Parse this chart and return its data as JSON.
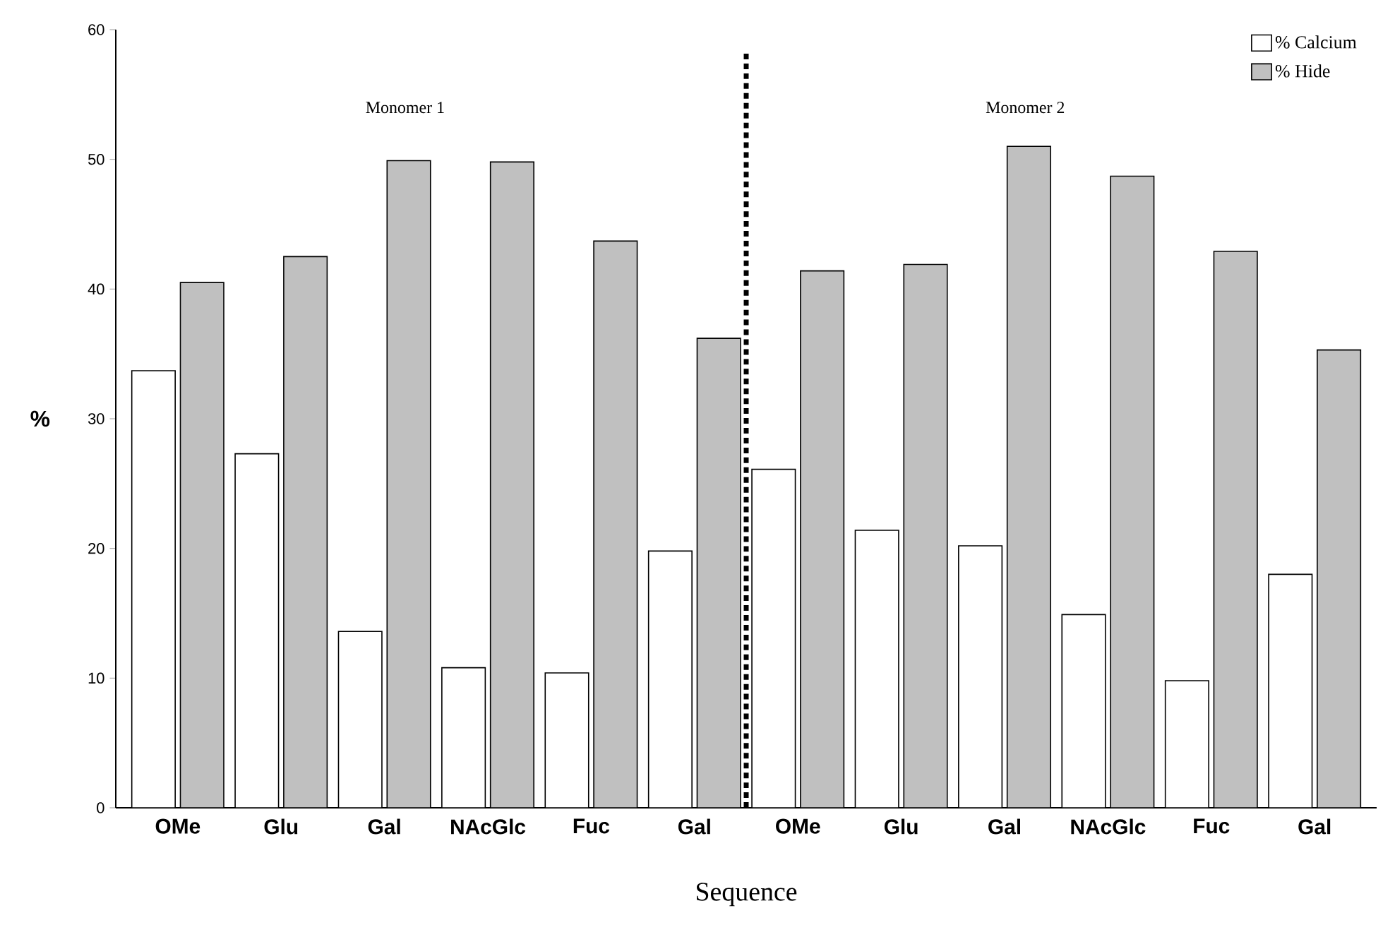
{
  "chart_data": {
    "type": "bar",
    "xlabel": "Sequence",
    "ylabel": "%",
    "categories": [
      "OMe",
      "Glu",
      "Gal",
      "NAcGlc",
      "Fuc",
      "Gal",
      "OMe",
      "Glu",
      "Gal",
      "NAcGlc",
      "Fuc",
      "Gal"
    ],
    "series": [
      {
        "name": "% Calcium",
        "color": "#ffffff",
        "values": [
          33.7,
          27.3,
          13.6,
          10.8,
          10.4,
          19.8,
          26.1,
          21.4,
          20.2,
          14.9,
          9.8,
          18.0
        ]
      },
      {
        "name": "% Hide",
        "color": "#c0c0c0",
        "values": [
          40.5,
          42.5,
          49.9,
          49.8,
          43.7,
          36.2,
          41.4,
          41.9,
          51.0,
          48.7,
          42.9,
          35.3
        ]
      }
    ],
    "ylim": [
      0,
      60
    ],
    "yticks": [
      0,
      10,
      20,
      30,
      40,
      50,
      60
    ],
    "annotations": [
      "Monomer 1",
      "Monomer 2"
    ],
    "legend": "top right",
    "grid": false
  }
}
